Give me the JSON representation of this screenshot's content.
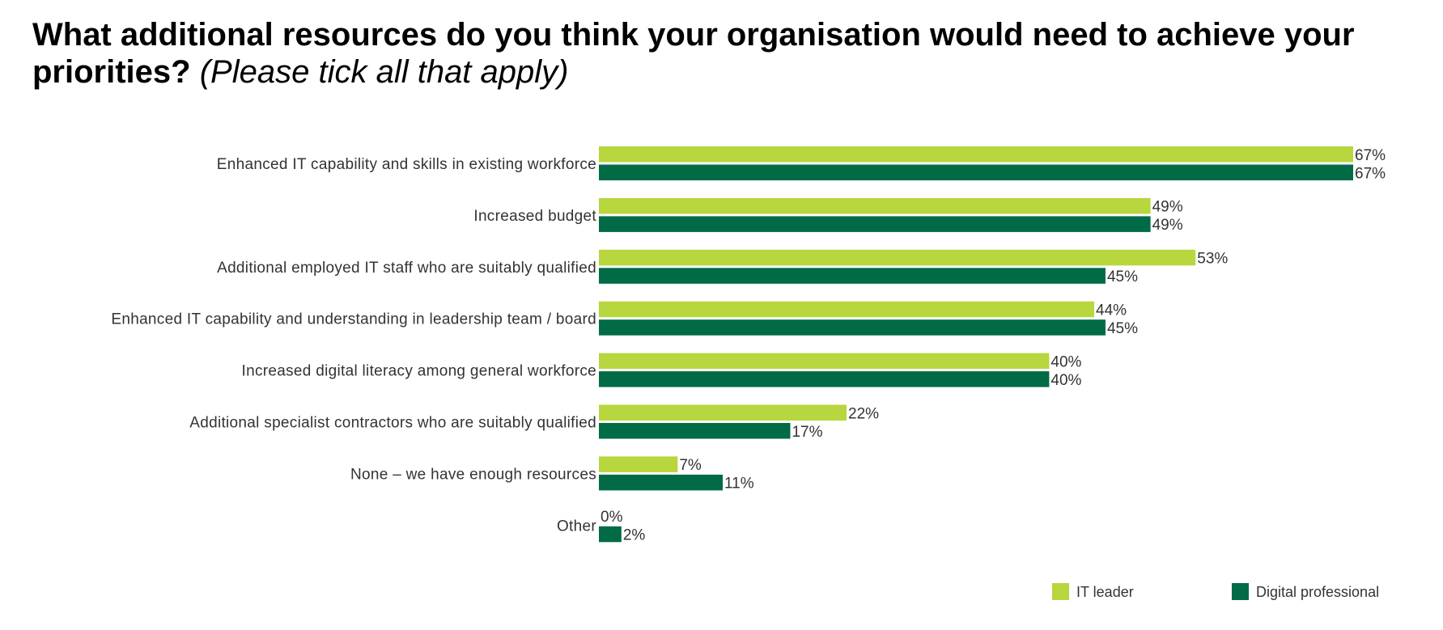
{
  "title": {
    "main": "What additional resources do you think your organisation would need to achieve your priorities?",
    "note": "(Please tick all that apply)"
  },
  "colors": {
    "it_leader": "#b8d63d",
    "digital_professional": "#006b45"
  },
  "chart_data": {
    "type": "bar",
    "orientation": "horizontal",
    "categories": [
      "Enhanced IT capability and skills in existing workforce",
      "Increased budget",
      "Additional employed IT staff who are suitably qualified",
      "Enhanced IT capability and understanding in leadership team / board",
      "Increased digital literacy among general workforce",
      "Additional specialist contractors who are suitably qualified",
      "None – we have enough resources",
      "Other"
    ],
    "series": [
      {
        "name": "IT leader",
        "color": "#b8d63d",
        "values": [
          67,
          49,
          53,
          44,
          40,
          22,
          7,
          0
        ],
        "labels": [
          "67%",
          "49%",
          "53%",
          "44%",
          "40%",
          "22%",
          "7%",
          "0%"
        ]
      },
      {
        "name": "Digital professional",
        "color": "#006b45",
        "values": [
          67,
          49,
          45,
          45,
          40,
          17,
          11,
          2
        ],
        "labels": [
          "67%",
          "49%",
          "45%",
          "45%",
          "40%",
          "17%",
          "11%",
          "2%"
        ]
      }
    ],
    "value_unit": "%",
    "xlim": [
      0,
      67
    ],
    "grid": false,
    "legend_position": "bottom-right"
  }
}
